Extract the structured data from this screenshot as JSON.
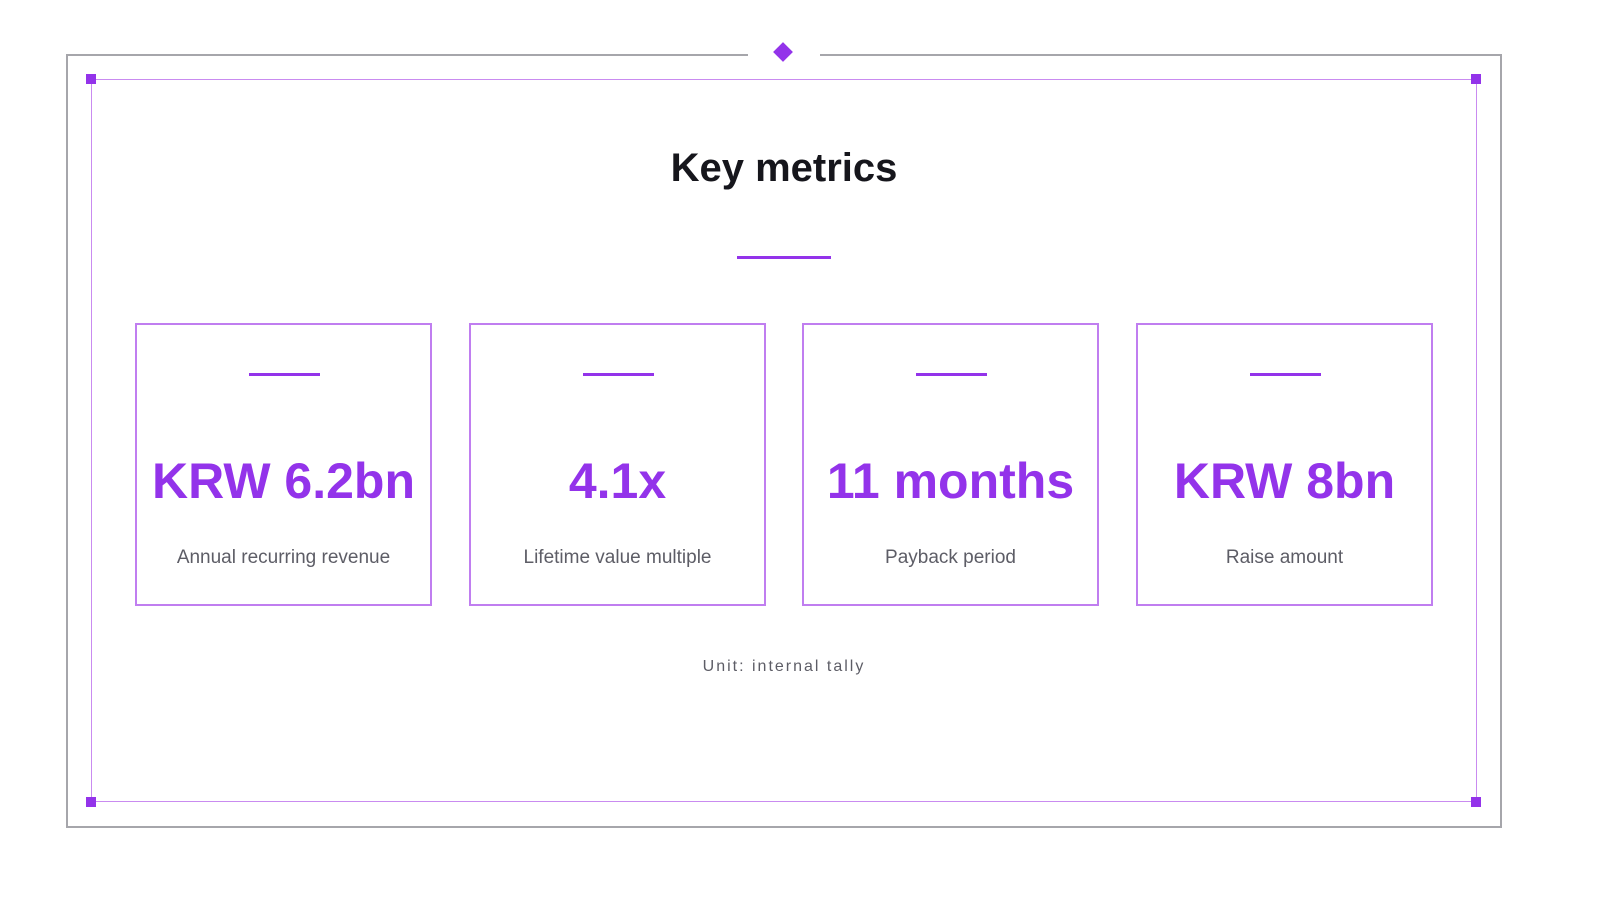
{
  "slide": {
    "title": "Key metrics",
    "accent_color": "#9333ea",
    "unit_note": "Unit: internal tally"
  },
  "metrics": [
    {
      "value": "KRW 6.2bn",
      "label": "Annual recurring revenue"
    },
    {
      "value": "4.1x",
      "label": "Lifetime value multiple"
    },
    {
      "value": "11 months",
      "label": "Payback period"
    },
    {
      "value": "KRW 8bn",
      "label": "Raise amount"
    }
  ]
}
